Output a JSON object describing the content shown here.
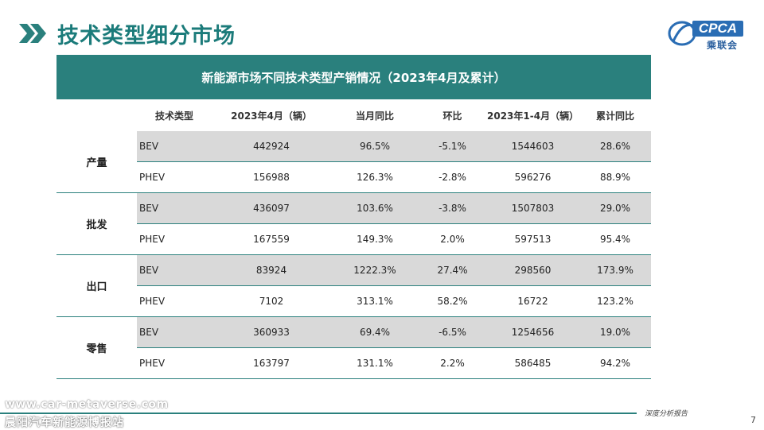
{
  "page": {
    "title": "技术类型细分市场",
    "page_number": "7",
    "report_tag": "深度分析报告",
    "site_url": "www.car-metaverse.com",
    "site_name": "晨阳汽车新能源博报站"
  },
  "logo": {
    "text": "CPCA",
    "cn": "乘联会"
  },
  "table": {
    "title": "新能源市场不同技术类型产销情况（2023年4月及累计）",
    "headers": [
      "",
      "技术类型",
      "2023年4月（辆）",
      "当月同比",
      "环比",
      "2023年1-4月（辆）",
      "累计同比"
    ],
    "groups": [
      {
        "name": "产量",
        "rows": [
          {
            "type": "BEV",
            "month": "442924",
            "yoy": "96.5%",
            "mom": "-5.1%",
            "ytd": "1544603",
            "ytd_yoy": "28.6%"
          },
          {
            "type": "PHEV",
            "month": "156988",
            "yoy": "126.3%",
            "mom": "-2.8%",
            "ytd": "596276",
            "ytd_yoy": "88.9%"
          }
        ]
      },
      {
        "name": "批发",
        "rows": [
          {
            "type": "BEV",
            "month": "436097",
            "yoy": "103.6%",
            "mom": "-3.8%",
            "ytd": "1507803",
            "ytd_yoy": "29.0%"
          },
          {
            "type": "PHEV",
            "month": "167559",
            "yoy": "149.3%",
            "mom": "2.0%",
            "ytd": "597513",
            "ytd_yoy": "95.4%"
          }
        ]
      },
      {
        "name": "出口",
        "rows": [
          {
            "type": "BEV",
            "month": "83924",
            "yoy": "1222.3%",
            "mom": "27.4%",
            "ytd": "298560",
            "ytd_yoy": "173.9%"
          },
          {
            "type": "PHEV",
            "month": "7102",
            "yoy": "313.1%",
            "mom": "58.2%",
            "ytd": "16722",
            "ytd_yoy": "123.2%"
          }
        ]
      },
      {
        "name": "零售",
        "rows": [
          {
            "type": "BEV",
            "month": "360933",
            "yoy": "69.4%",
            "mom": "-6.5%",
            "ytd": "1254656",
            "ytd_yoy": "19.0%"
          },
          {
            "type": "PHEV",
            "month": "163797",
            "yoy": "131.1%",
            "mom": "2.2%",
            "ytd": "586485",
            "ytd_yoy": "94.2%"
          }
        ]
      }
    ]
  },
  "colors": {
    "accent": "#2a807d",
    "title": "#1b7b7a",
    "row_shade": "#d9d9d9",
    "logo_blue": "#2a6db4"
  },
  "icons": {
    "title_marker": "double-chevron-right-icon",
    "logo_ring": "logo-swoosh-icon"
  }
}
